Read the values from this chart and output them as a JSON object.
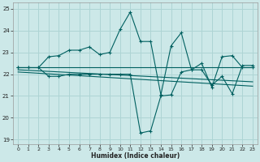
{
  "xlabel": "Humidex (Indice chaleur)",
  "bg_color": "#cce8e8",
  "grid_color": "#aed4d4",
  "line_color": "#006060",
  "xlim": [
    -0.5,
    23.5
  ],
  "ylim": [
    18.8,
    25.3
  ],
  "yticks": [
    19,
    20,
    21,
    22,
    23,
    24,
    25
  ],
  "xticks": [
    0,
    1,
    2,
    3,
    4,
    5,
    6,
    7,
    8,
    9,
    10,
    11,
    12,
    13,
    14,
    15,
    16,
    17,
    18,
    19,
    20,
    21,
    22,
    23
  ],
  "series1_x": [
    0,
    1,
    2,
    3,
    4,
    5,
    6,
    7,
    8,
    9,
    10,
    11,
    12,
    13,
    14,
    15,
    16,
    17,
    18,
    19,
    20,
    21,
    22,
    23
  ],
  "series1_y": [
    22.3,
    22.3,
    22.3,
    22.8,
    22.85,
    23.1,
    23.1,
    23.25,
    22.9,
    23.0,
    24.05,
    24.85,
    23.5,
    23.5,
    21.05,
    23.3,
    23.9,
    22.2,
    22.5,
    21.4,
    22.8,
    22.85,
    22.3,
    22.3
  ],
  "series2_x": [
    0,
    1,
    2,
    3,
    4,
    5,
    6,
    7,
    8,
    9,
    10,
    11,
    12,
    13,
    14,
    15,
    16,
    17,
    18,
    19,
    20,
    21,
    22,
    23
  ],
  "series2_y": [
    22.3,
    22.3,
    22.3,
    21.9,
    21.9,
    22.0,
    22.0,
    22.0,
    22.0,
    22.0,
    22.0,
    22.0,
    19.3,
    19.4,
    21.0,
    21.05,
    22.1,
    22.2,
    22.2,
    21.5,
    21.9,
    21.1,
    22.4,
    22.4
  ],
  "series3_x": [
    0,
    23
  ],
  "series3_y": [
    22.3,
    22.3
  ],
  "series4_x": [
    0,
    23
  ],
  "series4_y": [
    22.2,
    21.65
  ],
  "series5_x": [
    0,
    23
  ],
  "series5_y": [
    22.1,
    21.45
  ]
}
